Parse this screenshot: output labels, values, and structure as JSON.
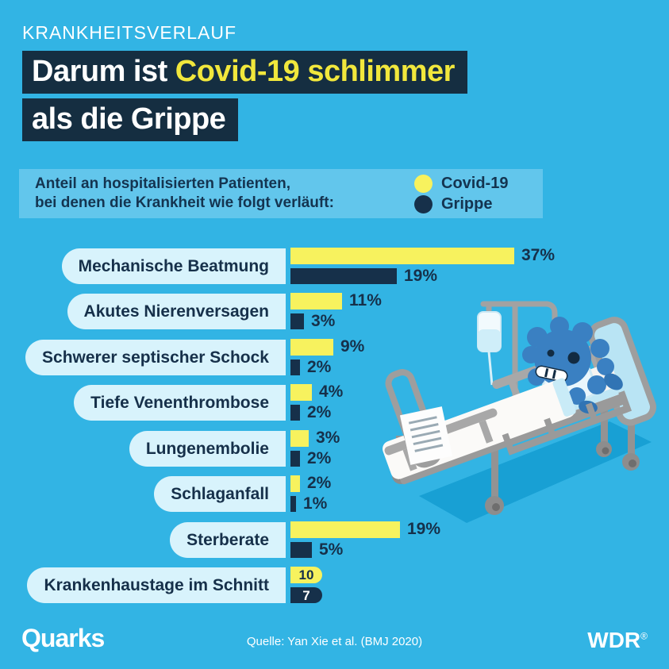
{
  "page": {
    "background": "#32b4e4"
  },
  "colors": {
    "navy": "#16304a",
    "yellow": "#f7f25e",
    "headline_yellow": "#f1e73c",
    "headline_bg": "#152e41",
    "pill_bg": "#d8f3fc",
    "legend_bg": "#62c6ec",
    "white": "#ffffff",
    "shadow_blue": "#18a0d4"
  },
  "kicker": "KRANKHEITSVERLAUF",
  "headline": {
    "line1_white": "Darum ist",
    "line1_yellow": "Covid-19 schlimmer",
    "line2": "als die Grippe"
  },
  "legend": {
    "line1": "Anteil an hospitalisierten Patienten,",
    "line2": "bei denen die Krankheit wie folgt verläuft:",
    "items": [
      {
        "label": "Covid-19",
        "color_key": "yellow"
      },
      {
        "label": "Grippe",
        "color_key": "navy"
      }
    ]
  },
  "chart_data": {
    "type": "bar",
    "orientation": "horizontal",
    "title": "Anteil an hospitalisierten Patienten, bei denen die Krankheit wie folgt verläuft:",
    "categories": [
      "Mechanische Beatmung",
      "Akutes Nierenversagen",
      "Schwerer septischer Schock",
      "Tiefe Venenthrombose",
      "Lungenembolie",
      "Schlaganfall",
      "Sterberate",
      "Krankenhaustage im Schnitt"
    ],
    "series": [
      {
        "name": "Covid-19",
        "values": [
          37,
          11,
          9,
          4,
          3,
          2,
          19,
          10
        ],
        "labels": [
          "37%",
          "11%",
          "9%",
          "4%",
          "3%",
          "2%",
          "19%",
          "10"
        ]
      },
      {
        "name": "Grippe",
        "values": [
          19,
          3,
          2,
          2,
          2,
          1,
          5,
          7
        ],
        "labels": [
          "19%",
          "3%",
          "2%",
          "2%",
          "2%",
          "1%",
          "5%",
          "7"
        ]
      }
    ],
    "unit_note": "values in % of hospitalized patients; last row = days",
    "value_label_inside": [
      false,
      false,
      false,
      false,
      false,
      false,
      false,
      true
    ],
    "legend_position": "top",
    "xlim": [
      0,
      40
    ],
    "grid": false
  },
  "illustration": {
    "name": "hospital-bed-with-covid-virus-patient"
  },
  "footer": {
    "brand_left": "Quarks",
    "source": "Quelle: Yan Xie et al. (BMJ 2020)",
    "brand_right": "WDR",
    "brand_right_mark": "®"
  }
}
